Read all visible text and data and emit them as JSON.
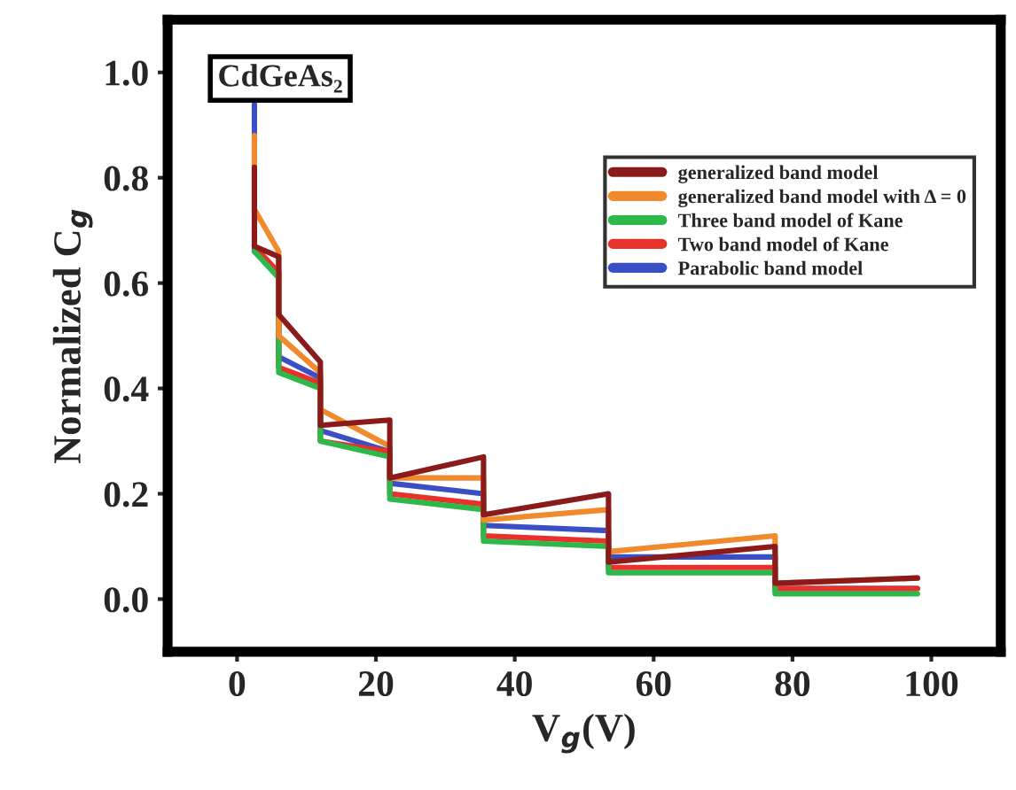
{
  "chart_data": {
    "type": "line",
    "xlabel": "V$_{g}$(V)",
    "ylabel": "Normalized C$_{g}$",
    "annotations": [
      "CdGeAs₂"
    ],
    "xlim": [
      -10,
      110
    ],
    "ylim": [
      -0.1,
      1.1
    ],
    "xticks": [
      0,
      20,
      40,
      60,
      80,
      100
    ],
    "yticks": [
      {
        "value": 0,
        "label": "0.0"
      },
      {
        "value": 0.2,
        "label": "0.2"
      },
      {
        "value": 0.4,
        "label": "0.4"
      },
      {
        "value": 0.6,
        "label": "0.6"
      },
      {
        "value": 0.8,
        "label": "0.8"
      },
      {
        "value": 1.0,
        "label": "1.0"
      }
    ],
    "grid": false,
    "legend": "right",
    "marker": "none",
    "line_style": "solid",
    "series": [
      {
        "name": "generalized band model",
        "color": "#8b1a1a",
        "x": [
          2.5,
          2.5,
          6,
          6,
          12,
          12,
          22,
          22,
          35.5,
          35.5,
          53.5,
          53.5,
          77.5,
          77.5,
          98
        ],
        "values": [
          0.82,
          0.67,
          0.65,
          0.54,
          0.45,
          0.33,
          0.34,
          0.23,
          0.27,
          0.16,
          0.2,
          0.07,
          0.1,
          0.03,
          0.04
        ]
      },
      {
        "name": "generalized band model with Δ = 0",
        "color": "#f08a2c",
        "x": [
          2.5,
          2.5,
          6,
          6,
          12,
          12,
          22,
          22,
          35.5,
          35.5,
          53.5,
          53.5,
          77.5,
          77.5,
          98
        ],
        "values": [
          0.88,
          0.74,
          0.66,
          0.5,
          0.43,
          0.36,
          0.29,
          0.23,
          0.23,
          0.15,
          0.17,
          0.09,
          0.12,
          0.03,
          0.04
        ]
      },
      {
        "name": "Three band model of Kane",
        "color": "#2db84a",
        "x": [
          2.5,
          2.5,
          6,
          6,
          12,
          12,
          22,
          22,
          35.5,
          35.5,
          53.5,
          53.5,
          77.5,
          77.5,
          98
        ],
        "values": [
          0.66,
          0.66,
          0.61,
          0.43,
          0.4,
          0.3,
          0.27,
          0.19,
          0.17,
          0.11,
          0.1,
          0.05,
          0.05,
          0.01,
          0.01
        ]
      },
      {
        "name": "Two band model of Kane",
        "color": "#e8312a",
        "x": [
          2.5,
          2.5,
          6,
          6,
          12,
          12,
          22,
          22,
          35.5,
          35.5,
          53.5,
          53.5,
          77.5,
          77.5,
          98
        ],
        "values": [
          0.67,
          0.67,
          0.62,
          0.44,
          0.41,
          0.3,
          0.28,
          0.2,
          0.18,
          0.12,
          0.11,
          0.06,
          0.06,
          0.02,
          0.02
        ]
      },
      {
        "name": "Parabolic band model",
        "color": "#3b4fc4",
        "x": [
          2.5,
          2.5,
          6,
          6,
          12,
          12,
          22,
          22,
          35.5,
          35.5,
          53.5,
          53.5,
          77.5,
          77.5,
          98
        ],
        "values": [
          0.94,
          0.66,
          0.62,
          0.46,
          0.42,
          0.32,
          0.28,
          0.22,
          0.2,
          0.14,
          0.13,
          0.08,
          0.08,
          0.02,
          0.02
        ]
      }
    ]
  }
}
